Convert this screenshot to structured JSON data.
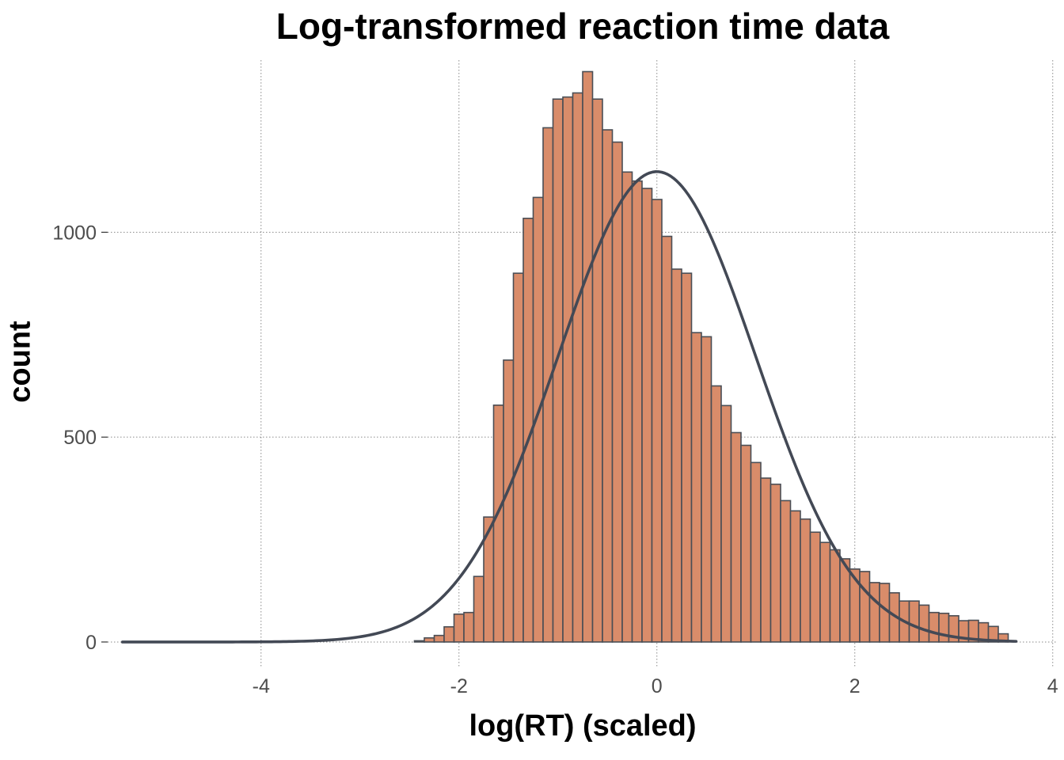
{
  "chart_data": {
    "type": "bar",
    "title": "Log-transformed reaction time data",
    "xlabel": "log(RT) (scaled)",
    "ylabel": "count",
    "xlim": [
      -5.55,
      4.05
    ],
    "ylim": [
      -60,
      1420
    ],
    "x_ticks": [
      -4,
      -2,
      0,
      2,
      4
    ],
    "x_tick_labels": [
      "-4",
      "-2",
      "0",
      "2",
      "4"
    ],
    "y_ticks": [
      0,
      500,
      1000
    ],
    "y_tick_labels": [
      "0",
      "500",
      "1000"
    ],
    "grid": true,
    "bin_width": 0.1,
    "bins_start": -2.45,
    "values": [
      3,
      10,
      16,
      37,
      68,
      72,
      160,
      305,
      578,
      688,
      900,
      1034,
      1085,
      1255,
      1325,
      1330,
      1340,
      1392,
      1325,
      1250,
      1220,
      1147,
      1125,
      1107,
      1080,
      990,
      910,
      900,
      755,
      745,
      625,
      577,
      511,
      480,
      438,
      400,
      385,
      345,
      320,
      300,
      268,
      243,
      225,
      203,
      178,
      172,
      145,
      143,
      120,
      100,
      100,
      90,
      72,
      70,
      64,
      52,
      53,
      47,
      38,
      20
    ],
    "bar_fill": "#d98c6a",
    "bar_stroke": "#4a4e55",
    "curve": {
      "type": "normal-density",
      "mean": 0,
      "sd": 1,
      "peak": 1148,
      "x_range": [
        -5.4,
        3.63
      ],
      "color": "#434955"
    }
  }
}
